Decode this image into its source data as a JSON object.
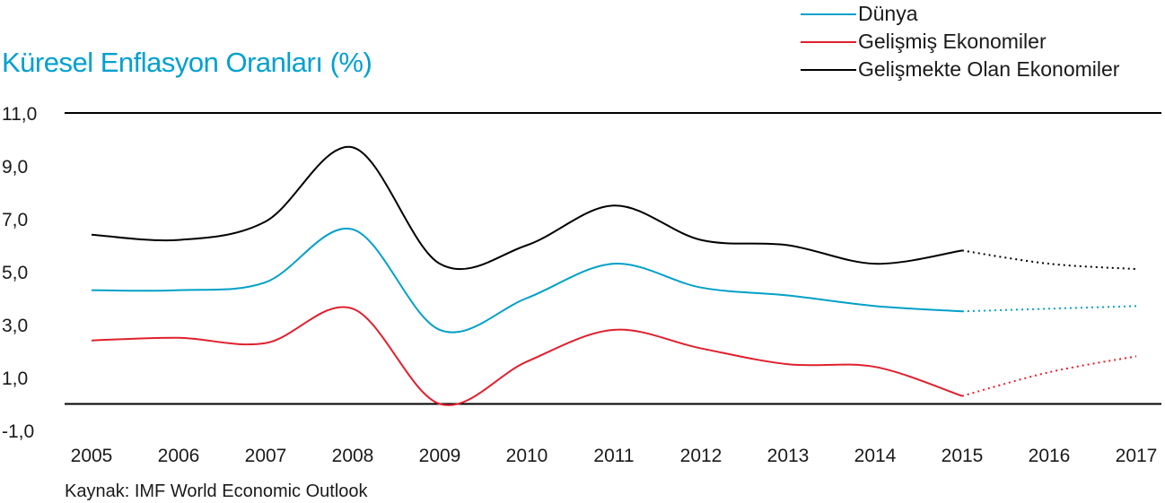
{
  "chart_data": {
    "type": "line",
    "title": "Küresel Enflasyon Oranları",
    "title_unit": "(%)",
    "title_color": "#00a0d0",
    "categories": [
      "2005",
      "2006",
      "2007",
      "2008",
      "2009",
      "2010",
      "2011",
      "2012",
      "2013",
      "2014",
      "2015",
      "2016",
      "2017"
    ],
    "y_ticks": [
      "11,0",
      "9,0",
      "7,0",
      "5,0",
      "3,0",
      "1,0",
      "-1,0"
    ],
    "ylim": [
      -1,
      11
    ],
    "gridlines": [
      11,
      0
    ],
    "forecast_from": "2015",
    "series": [
      {
        "name": "Dünya",
        "color": "#00a0c8",
        "values": [
          4.3,
          4.3,
          4.6,
          6.6,
          2.8,
          4.0,
          5.3,
          4.4,
          4.1,
          3.7,
          3.5,
          3.6,
          3.7
        ]
      },
      {
        "name": "Gelişmiş Ekonomiler",
        "color": "#e0202e",
        "values": [
          2.4,
          2.5,
          2.3,
          3.6,
          0.0,
          1.6,
          2.8,
          2.1,
          1.5,
          1.4,
          0.3,
          1.2,
          1.8
        ]
      },
      {
        "name": "Gelişmekte Olan Ekonomiler",
        "color": "#000000",
        "values": [
          6.4,
          6.2,
          6.9,
          9.7,
          5.3,
          6.0,
          7.5,
          6.2,
          6.0,
          5.3,
          5.8,
          5.3,
          5.1
        ]
      }
    ],
    "source": "Kaynak: IMF World Economic Outlook"
  }
}
